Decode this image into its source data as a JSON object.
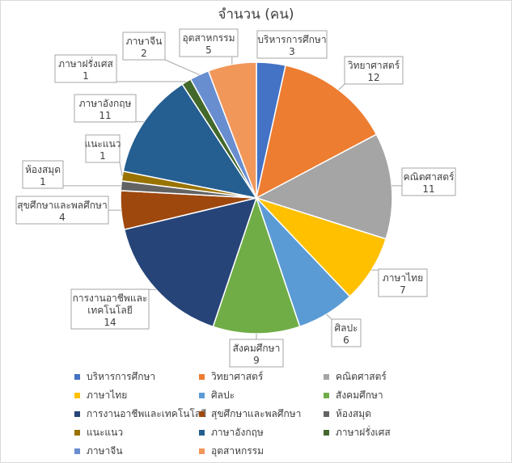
{
  "chart_data": {
    "type": "pie",
    "title": "จำนวน (คน)",
    "legend_position": "bottom",
    "categories": [
      "บริหารการศึกษา",
      "วิทยาศาสตร์",
      "คณิตศาสตร์",
      "ภาษาไทย",
      "ศิลปะ",
      "สังคมศึกษา",
      "การงานอาชีพและเทคโนโลยี",
      "สุขศึกษาและพลศึกษา",
      "ห้องสมุด",
      "แนะแนว",
      "ภาษาอังกฤษ",
      "ภาษาฝรั่งเศส",
      "ภาษาจีน",
      "อุตสาหกรรม"
    ],
    "values": [
      3,
      12,
      11,
      7,
      6,
      9,
      14,
      4,
      1,
      1,
      11,
      1,
      2,
      5
    ],
    "colors": [
      "#4472c4",
      "#ed7d31",
      "#a5a5a5",
      "#ffc000",
      "#5b9bd5",
      "#70ad47",
      "#264478",
      "#9e480e",
      "#636363",
      "#997300",
      "#255e91",
      "#43682b",
      "#698ed0",
      "#f1975a"
    ]
  }
}
